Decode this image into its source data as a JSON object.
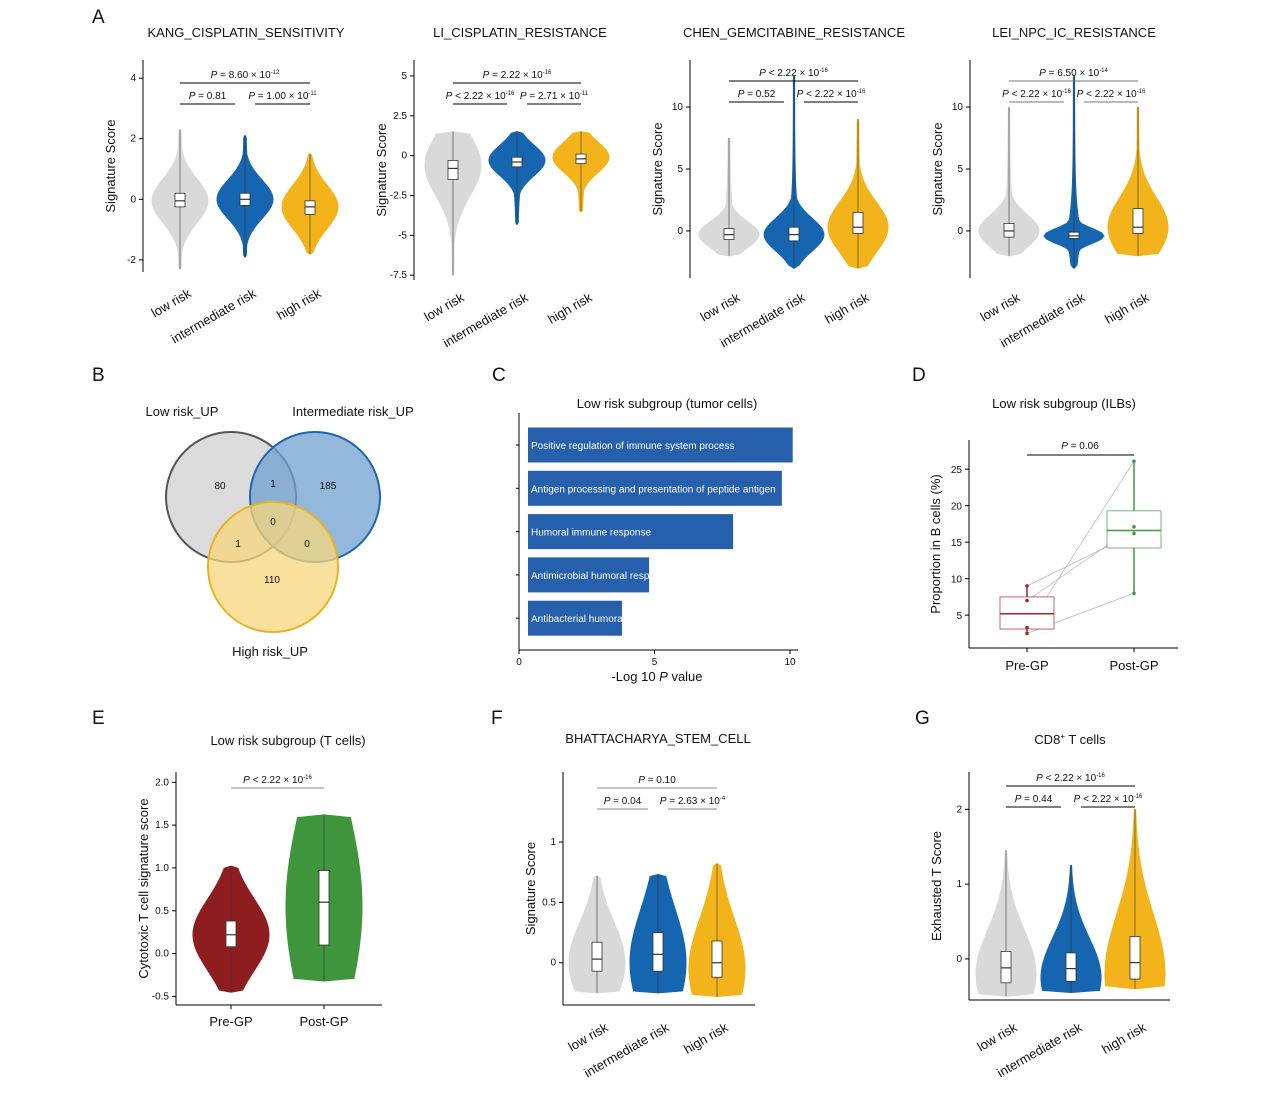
{
  "p_symbol": "P",
  "panel_letters": [
    "A",
    "B",
    "C",
    "D",
    "E",
    "F",
    "G"
  ],
  "chart_data": [
    {
      "id": "A1",
      "type": "violin",
      "title": "KANG_CISPLATIN_SENSITIVITY",
      "ylabel": "Signature Score",
      "categories": [
        "low risk",
        "intermediate risk",
        "high risk"
      ],
      "yticks": [
        -2,
        0,
        2,
        4
      ],
      "ylim": [
        -2.4,
        4.6
      ],
      "colors": [
        "#d9d9d9",
        "#1565b0",
        "#f2b41a"
      ],
      "violins": [
        {
          "min": -2.3,
          "max": 2.3,
          "q1": -0.25,
          "median": -0.05,
          "q3": 0.2,
          "mode": -0.05
        },
        {
          "min": -1.9,
          "max": 2.1,
          "q1": -0.2,
          "median": 0.0,
          "q3": 0.2,
          "mode": 0.0
        },
        {
          "min": -1.8,
          "max": 1.5,
          "q1": -0.5,
          "median": -0.25,
          "q3": -0.05,
          "mode": -0.25
        }
      ],
      "pvalues": [
        {
          "pair": [
            0,
            2
          ],
          "op": "=",
          "val": "8.60 × 10",
          "exp": "-12"
        },
        {
          "pair": [
            0,
            1
          ],
          "op": "=",
          "val": "0.81",
          "exp": ""
        },
        {
          "pair": [
            1,
            2
          ],
          "op": "=",
          "val": "1.00 × 10",
          "exp": "-11"
        }
      ]
    },
    {
      "id": "A2",
      "type": "violin",
      "title": "LI_CISPLATIN_RESISTANCE",
      "ylabel": "Signature Score",
      "categories": [
        "low risk",
        "intermediate risk",
        "high risk"
      ],
      "yticks": [
        -7.5,
        -5,
        -2.5,
        0,
        2.5,
        5
      ],
      "ylim": [
        -7.8,
        6
      ],
      "colors": [
        "#d9d9d9",
        "#1565b0",
        "#f2b41a"
      ],
      "violins": [
        {
          "min": -7.5,
          "max": 1.5,
          "q1": -1.5,
          "median": -0.8,
          "q3": -0.3,
          "mode": -0.6
        },
        {
          "min": -4.3,
          "max": 1.5,
          "q1": -0.7,
          "median": -0.4,
          "q3": -0.1,
          "mode": -0.3
        },
        {
          "min": -3.5,
          "max": 1.5,
          "q1": -0.5,
          "median": -0.2,
          "q3": 0.1,
          "mode": -0.1
        }
      ],
      "pvalues": [
        {
          "pair": [
            0,
            2
          ],
          "op": "=",
          "val": "2.22 × 10",
          "exp": "-16"
        },
        {
          "pair": [
            0,
            1
          ],
          "op": "<",
          "val": "2.22 × 10",
          "exp": "-16"
        },
        {
          "pair": [
            1,
            2
          ],
          "op": "=",
          "val": "2.71 × 10",
          "exp": "-11"
        }
      ]
    },
    {
      "id": "A3",
      "type": "violin",
      "title": "CHEN_GEMCITABINE_RESISTANCE",
      "ylabel": "Signature Score",
      "categories": [
        "low risk",
        "intermediate risk",
        "high risk"
      ],
      "yticks": [
        0,
        5,
        10
      ],
      "ylim": [
        -3.8,
        13.8
      ],
      "colors": [
        "#d9d9d9",
        "#1565b0",
        "#f2b41a"
      ],
      "violins": [
        {
          "min": -2,
          "max": 7.5,
          "q1": -0.7,
          "median": -0.3,
          "q3": 0.2,
          "mode": -0.3
        },
        {
          "min": -3,
          "max": 12.5,
          "q1": -0.8,
          "median": -0.3,
          "q3": 0.3,
          "mode": -0.3
        },
        {
          "min": -3,
          "max": 9,
          "q1": -0.2,
          "median": 0.3,
          "q3": 1.5,
          "mode": 0.3
        }
      ],
      "pvalues": [
        {
          "pair": [
            0,
            2
          ],
          "op": "<",
          "val": "2.22 × 10",
          "exp": "-16"
        },
        {
          "pair": [
            0,
            1
          ],
          "op": "=",
          "val": "0.52",
          "exp": ""
        },
        {
          "pair": [
            1,
            2
          ],
          "op": "<",
          "val": "2.22 × 10",
          "exp": "-16"
        }
      ]
    },
    {
      "id": "A4",
      "type": "violin",
      "title": "LEI_NPC_IC_RESISTANCE",
      "ylabel": "Signature Score",
      "categories": [
        "low risk",
        "intermediate risk",
        "high risk"
      ],
      "yticks": [
        0,
        5,
        10
      ],
      "ylim": [
        -3.8,
        13.8
      ],
      "colors": [
        "#d9d9d9",
        "#1565b0",
        "#f2b41a"
      ],
      "violins": [
        {
          "min": -2,
          "max": 10,
          "q1": -0.5,
          "median": 0.0,
          "q3": 0.6,
          "mode": 0.0
        },
        {
          "min": -3,
          "max": 12.5,
          "q1": -0.6,
          "median": -0.4,
          "q3": -0.1,
          "mode": -0.4
        },
        {
          "min": -2,
          "max": 10,
          "q1": -0.2,
          "median": 0.3,
          "q3": 1.8,
          "mode": 0.3
        }
      ],
      "pvalues": [
        {
          "pair": [
            0,
            2
          ],
          "op": "=",
          "val": "6.50 × 10",
          "exp": "-14"
        },
        {
          "pair": [
            0,
            1
          ],
          "op": "<",
          "val": "2.22 × 10",
          "exp": "-16"
        },
        {
          "pair": [
            1,
            2
          ],
          "op": "<",
          "val": "2.22 × 10",
          "exp": "-16"
        }
      ]
    },
    {
      "id": "B",
      "type": "venn",
      "sets": [
        {
          "name": "Low risk_UP",
          "color": "#cfcfcf",
          "stroke": "#555555"
        },
        {
          "name": "Intermediate risk_UP",
          "color": "#6fa0cf",
          "stroke": "#1f66b0"
        },
        {
          "name": "High risk_UP",
          "color": "#f7d77c",
          "stroke": "#e8b420"
        }
      ],
      "regions": {
        "low_only": 80,
        "intermediate_only": 185,
        "high_only": 110,
        "low_intermediate": 1,
        "low_high": 1,
        "intermediate_high": 0,
        "all": 0
      }
    },
    {
      "id": "C",
      "type": "bar",
      "orientation": "horizontal",
      "title": "Low risk subgroup (tumor cells)",
      "xlabel_prefix": "-Log 10 ",
      "xlabel_italic": "P",
      "xlabel_suffix": " value",
      "xticks": [
        0,
        5,
        10
      ],
      "xlim": [
        0,
        10.3
      ],
      "color": "#2660ac",
      "categories": [
        "Positive regulation of immune system process",
        "Antigen processing and presentation of peptide antigen",
        "Humoral immune response",
        "Antimicrobial humoral response",
        "Antibacterial humoral response"
      ],
      "visible_labels": [
        "Positive regulation of immune system process",
        "Antigen processing and presentation of peptide antigen",
        "Humoral immune response",
        "Antimicrobial humoral resp",
        "Antibacterial humora"
      ],
      "values": [
        10.1,
        9.7,
        7.9,
        4.8,
        3.8
      ]
    },
    {
      "id": "D",
      "type": "box",
      "title": "Low risk subgroup (ILBs)",
      "ylabel": "Proportion in B cells (%)",
      "categories": [
        "Pre-GP",
        "Post-GP"
      ],
      "yticks": [
        5,
        10,
        15,
        20,
        25
      ],
      "ylim": [
        0.5,
        29
      ],
      "colors": [
        "#a3282b",
        "#3f9a3f"
      ],
      "boxes": [
        {
          "min": 2.5,
          "q1": 3.1,
          "median": 5.2,
          "q3": 7.5,
          "max": 9.0
        },
        {
          "min": 8.0,
          "q1": 14.2,
          "median": 16.6,
          "q3": 19.3,
          "max": 26.1
        }
      ],
      "paired_points": [
        [
          9.0,
          16.2
        ],
        [
          7.0,
          17.1
        ],
        [
          3.3,
          26.1
        ],
        [
          2.5,
          8.0
        ]
      ],
      "pvalues": [
        {
          "pair": [
            0,
            1
          ],
          "op": "=",
          "val": "0.06",
          "exp": ""
        }
      ]
    },
    {
      "id": "E",
      "type": "violin",
      "title": "Low risk subgroup (T cells)",
      "ylabel": "Cytotoxic T cell signature score",
      "categories": [
        "Pre-GP",
        "Post-GP"
      ],
      "yticks": [
        -0.5,
        0.0,
        0.5,
        1.0,
        1.5,
        2.0
      ],
      "ytick_labels": [
        "-0.5",
        "0.0",
        "0.5",
        "1.0",
        "1.5",
        "2.0"
      ],
      "ylim": [
        -0.6,
        2.12
      ],
      "colors": [
        "#8e1d1f",
        "#3f953c"
      ],
      "violins": [
        {
          "min": -0.45,
          "max": 1.02,
          "q1": 0.08,
          "median": 0.22,
          "q3": 0.38,
          "mode": 0.22
        },
        {
          "min": -0.32,
          "max": 1.62,
          "q1": 0.1,
          "median": 0.6,
          "q3": 0.97,
          "mode": 0.55
        }
      ],
      "pvalues": [
        {
          "pair": [
            0,
            1
          ],
          "op": "<",
          "val": "2.22 × 10",
          "exp": "-16"
        }
      ]
    },
    {
      "id": "F",
      "type": "violin",
      "title": "BHATTACHARYA_STEM_CELL",
      "ylabel": "Signature Score",
      "categories": [
        "low risk",
        "intermediate risk",
        "high risk"
      ],
      "yticks": [
        0,
        0.5,
        1
      ],
      "ylim": [
        -0.35,
        1.58
      ],
      "colors": [
        "#d9d9d9",
        "#1565b0",
        "#f2b41a"
      ],
      "violins": [
        {
          "min": -0.25,
          "max": 0.72,
          "q1": -0.07,
          "median": 0.03,
          "q3": 0.17,
          "mode": 0.0
        },
        {
          "min": -0.25,
          "max": 0.73,
          "q1": -0.07,
          "median": 0.07,
          "q3": 0.25,
          "mode": 0.0
        },
        {
          "min": -0.28,
          "max": 0.82,
          "q1": -0.12,
          "median": 0.0,
          "q3": 0.18,
          "mode": -0.05
        }
      ],
      "pvalues": [
        {
          "pair": [
            0,
            2
          ],
          "op": "=",
          "val": "0.10",
          "exp": ""
        },
        {
          "pair": [
            0,
            1
          ],
          "op": "=",
          "val": "0.04",
          "exp": ""
        },
        {
          "pair": [
            1,
            2
          ],
          "op": "=",
          "val": "2.63 × 10",
          "exp": "-4"
        }
      ]
    },
    {
      "id": "G",
      "type": "violin",
      "title_main": "CD8",
      "title_sup": "+",
      "title_rest": " T cells",
      "ylabel": "Exhausted T Score",
      "categories": [
        "low risk",
        "intermediate risk",
        "high risk"
      ],
      "yticks": [
        0,
        1,
        2
      ],
      "ylim": [
        -0.55,
        2.5
      ],
      "colors": [
        "#d9d9d9",
        "#1565b0",
        "#f2b41a"
      ],
      "violins": [
        {
          "min": -0.5,
          "max": 1.45,
          "q1": -0.32,
          "median": -0.12,
          "q3": 0.1,
          "mode": -0.2
        },
        {
          "min": -0.45,
          "max": 1.25,
          "q1": -0.3,
          "median": -0.13,
          "q3": 0.08,
          "mode": -0.25
        },
        {
          "min": -0.4,
          "max": 2.0,
          "q1": -0.27,
          "median": -0.05,
          "q3": 0.3,
          "mode": -0.2
        }
      ],
      "pvalues": [
        {
          "pair": [
            0,
            2
          ],
          "op": "<",
          "val": "2.22 × 10",
          "exp": "-16"
        },
        {
          "pair": [
            0,
            1
          ],
          "op": "=",
          "val": "0.44",
          "exp": ""
        },
        {
          "pair": [
            1,
            2
          ],
          "op": "<",
          "val": "2.22 × 10",
          "exp": "-16"
        }
      ]
    }
  ]
}
